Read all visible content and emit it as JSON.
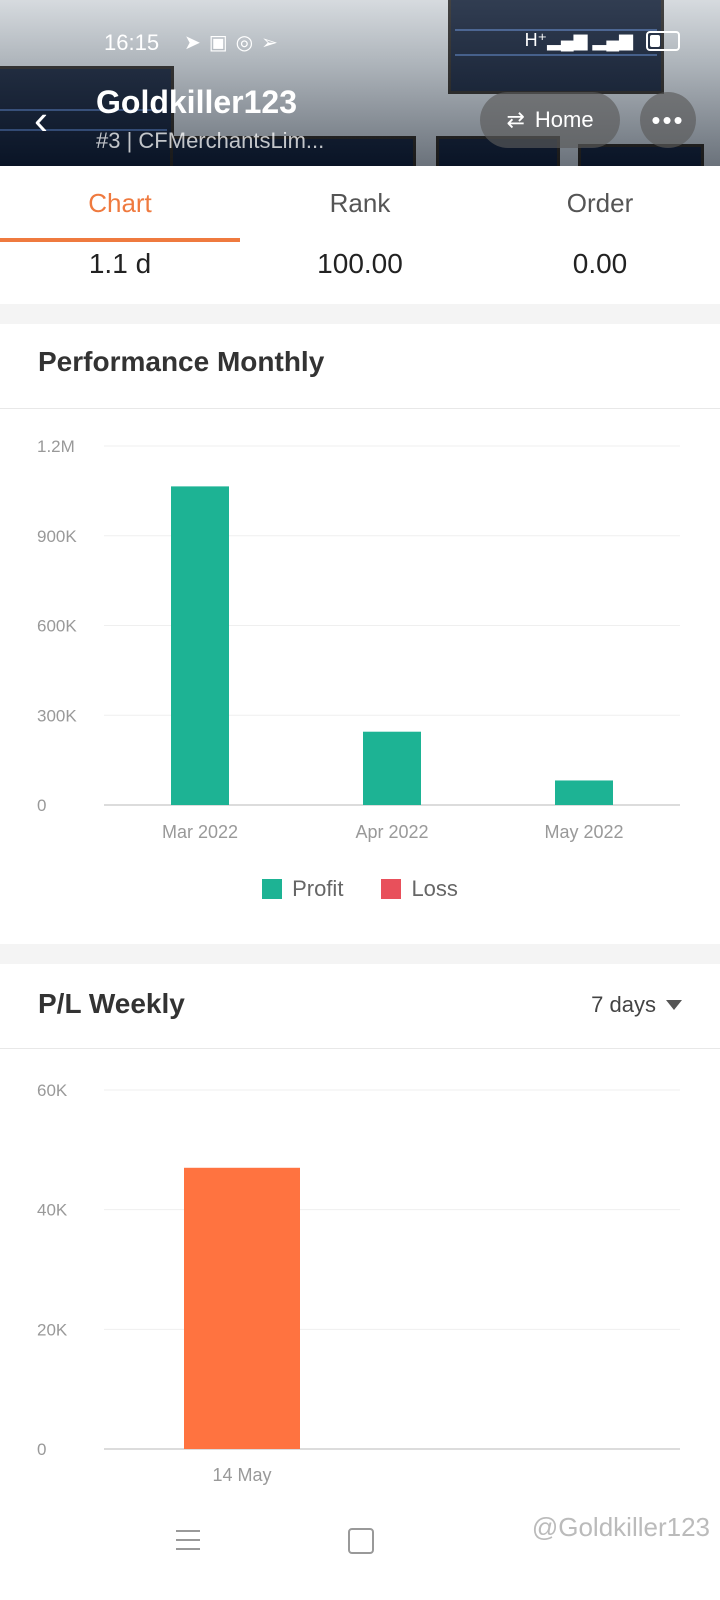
{
  "status_bar": {
    "time": "16:15",
    "left_icons": [
      "send-icon",
      "zalo-icon",
      "whatsapp-icon",
      "telegram-icon"
    ],
    "right_icons": [
      "hplus-signal-icon",
      "signal-icon",
      "battery-icon"
    ]
  },
  "header": {
    "username": "Goldkiller123",
    "subline": "#3 | CFMerchantsLim...",
    "home_label": "Home",
    "more_label": "•••"
  },
  "tabs": [
    {
      "label": "Chart",
      "active": true
    },
    {
      "label": "Rank",
      "active": false
    },
    {
      "label": "Order",
      "active": false
    }
  ],
  "stats": [
    "1.1 d",
    "100.00",
    "0.00"
  ],
  "performance": {
    "title": "Performance Monthly",
    "legend": [
      {
        "label": "Profit",
        "color": "#1db394"
      },
      {
        "label": "Loss",
        "color": "#e8505b"
      }
    ]
  },
  "weekly": {
    "title": "P/L Weekly",
    "dropdown": "7 days"
  },
  "chart_data": [
    {
      "type": "bar",
      "title": "Performance Monthly",
      "categories": [
        "Mar 2022",
        "Apr 2022",
        "May 2022"
      ],
      "series": [
        {
          "name": "Profit",
          "values": [
            1065000,
            245000,
            82000
          ],
          "color": "#1db394"
        },
        {
          "name": "Loss",
          "values": [
            0,
            0,
            0
          ],
          "color": "#e8505b"
        }
      ],
      "yticks": [
        0,
        300000,
        600000,
        900000,
        1200000
      ],
      "ytick_labels": [
        "0",
        "300K",
        "600K",
        "900K",
        "1.2M"
      ],
      "ylim": [
        0,
        1200000
      ],
      "grid": true,
      "legend": "bottom"
    },
    {
      "type": "bar",
      "title": "P/L Weekly",
      "categories": [
        "14 May"
      ],
      "values": [
        47000
      ],
      "color": "#ff7340",
      "yticks": [
        0,
        20000,
        40000,
        60000
      ],
      "ytick_labels": [
        "0",
        "20K",
        "40K",
        "60K"
      ],
      "ylim": [
        0,
        60000
      ],
      "grid": true
    }
  ],
  "watermark": "@Goldkiller123"
}
